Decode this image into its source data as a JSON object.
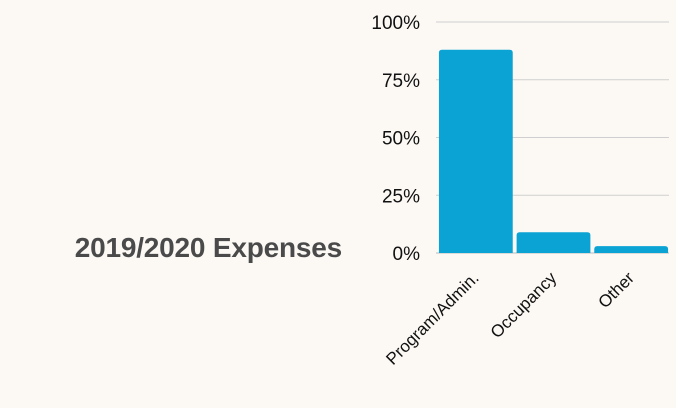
{
  "title": "2019/2020 Expenses",
  "chart_data": {
    "type": "bar",
    "categories": [
      "Program/Admin.",
      "Occupancy",
      "Other"
    ],
    "values": [
      88,
      9,
      3
    ],
    "ylim": [
      0,
      100
    ],
    "yticks": [
      "0%",
      "25%",
      "50%",
      "75%",
      "100%"
    ],
    "ytick_values": [
      0,
      25,
      50,
      75,
      100
    ],
    "grid": true,
    "bar_color": "#0aa3d4",
    "grid_color": "#cfcfcf"
  }
}
